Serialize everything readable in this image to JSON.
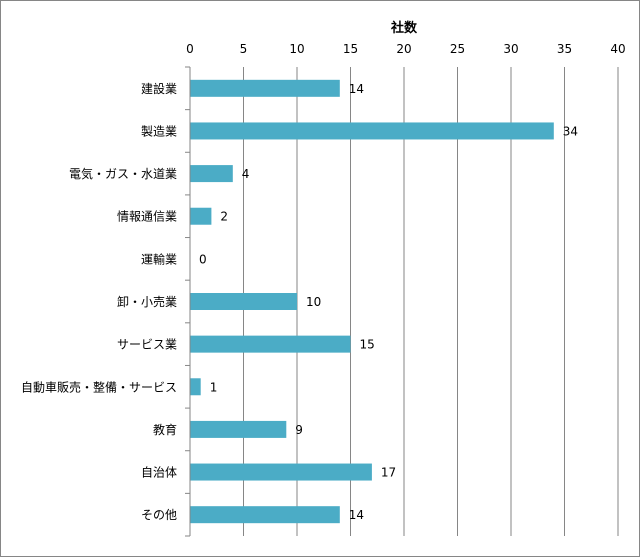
{
  "chart_data": {
    "type": "bar",
    "orientation": "horizontal",
    "xlabel": "社数",
    "xlim": [
      0,
      40
    ],
    "xticks": [
      0,
      5,
      10,
      15,
      20,
      25,
      30,
      35,
      40
    ],
    "categories": [
      "建設業",
      "製造業",
      "電気・ガス・水道業",
      "情報通信業",
      "運輸業",
      "卸・小売業",
      "サービス業",
      "自動車販売・整備・サービス",
      "教育",
      "自治体",
      "その他"
    ],
    "values": [
      14,
      34,
      4,
      2,
      0,
      10,
      15,
      1,
      9,
      17,
      14
    ],
    "data_labels": [
      "14",
      "34",
      "4",
      "2",
      "0",
      "10",
      "15",
      "1",
      "9",
      "17",
      "14"
    ],
    "tick_labels": [
      "0",
      "5",
      "10",
      "15",
      "20",
      "25",
      "30",
      "35",
      "40"
    ],
    "bar_color": "#4BACC6",
    "grid": "vertical",
    "axis_position": "top",
    "legend": "none"
  }
}
